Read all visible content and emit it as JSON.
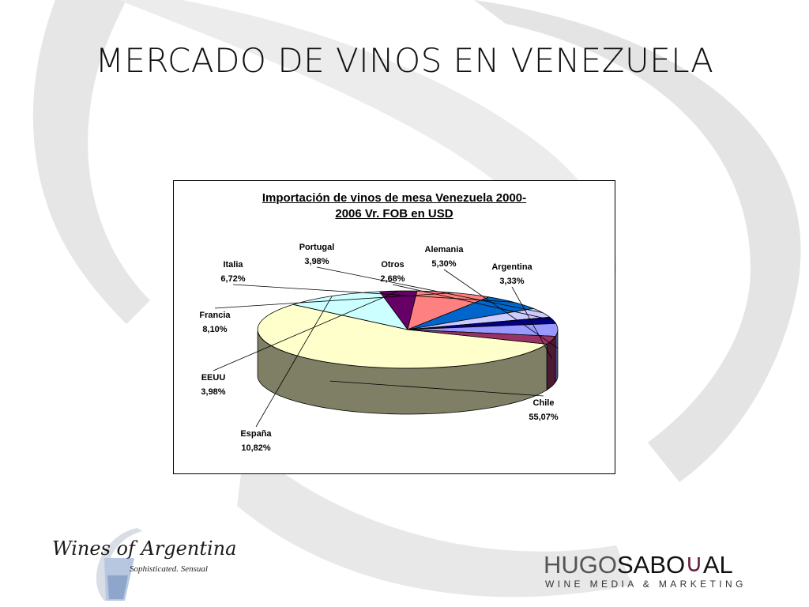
{
  "slide": {
    "title": "MERCADO DE VINOS EN VENEZUELA"
  },
  "chart_data": {
    "type": "pie",
    "title_line1": "Importación de vinos de mesa Venezuela 2000-",
    "title_line2": "2006 Vr. FOB en USD",
    "legend": "none",
    "slices": [
      {
        "name": "Chile",
        "percent_label": "55,07%",
        "value": 55.07,
        "color": "#ffffcc",
        "side_color": "#7f7f66"
      },
      {
        "name": "España",
        "percent_label": "10,82%",
        "value": 10.82,
        "color": "#ccffff",
        "side_color": "#668080"
      },
      {
        "name": "EEUU",
        "percent_label": "3,98%",
        "value": 3.98,
        "color": "#660066",
        "side_color": "#330033"
      },
      {
        "name": "Francia",
        "percent_label": "8,10%",
        "value": 8.1,
        "color": "#ff8080",
        "side_color": "#804040"
      },
      {
        "name": "Italia",
        "percent_label": "6,72%",
        "value": 6.72,
        "color": "#0066cc",
        "side_color": "#003366"
      },
      {
        "name": "Portugal",
        "percent_label": "3,98%",
        "value": 3.98,
        "color": "#ccccff",
        "side_color": "#666680"
      },
      {
        "name": "Otros",
        "percent_label": "2,68%",
        "value": 2.68,
        "color": "#000080",
        "side_color": "#000040"
      },
      {
        "name": "Alemania",
        "percent_label": "5,30%",
        "value": 5.3,
        "color": "#9999ff",
        "side_color": "#4d4d80"
      },
      {
        "name": "Argentina",
        "percent_label": "3,33%",
        "value": 3.33,
        "color": "#993366",
        "side_color": "#4d1a33"
      }
    ]
  },
  "logos": {
    "wines_of_argentina": {
      "title": "Wines of Argentina",
      "tagline": "Sophisticated. Sensual"
    },
    "hugo_saboyal": {
      "hugo": "HUGO",
      "sabo": "SABO",
      "u": "∪",
      "al": "AL",
      "tagline": "WINE MEDIA & MARKETING"
    }
  }
}
